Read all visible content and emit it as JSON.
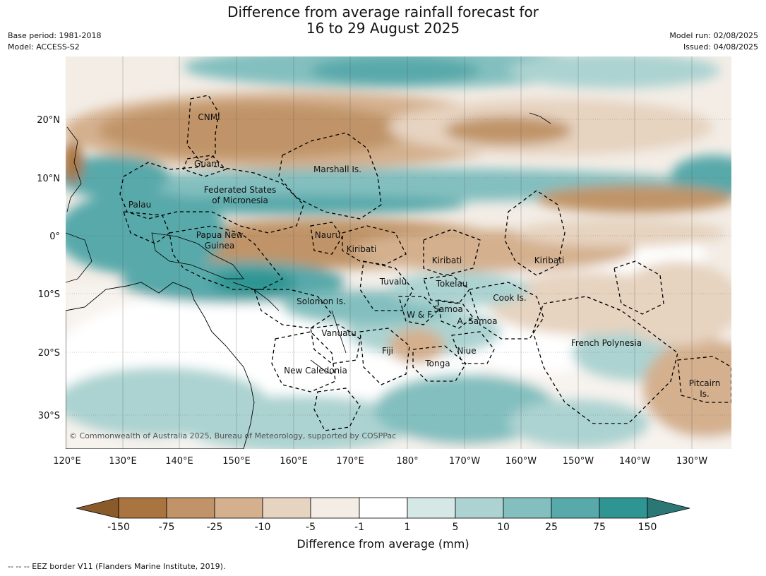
{
  "title_line1": "Difference from average rainfall forecast for",
  "title_line2": "16 to 29 August 2025",
  "meta_left": [
    "Base period: 1981-2018",
    "Model: ACCESS-S2"
  ],
  "meta_right": [
    "Model run: 02/08/2025",
    "Issued: 04/08/2025"
  ],
  "copyright": "© Commonwealth of Australia 2025, Bureau of Meteorology, supported by COSPPac",
  "lat_labels": [
    "20°N",
    "10°N",
    "0°",
    "10°S",
    "20°S",
    "30°S"
  ],
  "lon_labels": [
    "120°E",
    "130°E",
    "140°E",
    "150°E",
    "160°E",
    "170°E",
    "180°",
    "170°W",
    "160°W",
    "150°W",
    "140°W",
    "130°W"
  ],
  "region_labels": [
    "CNMI",
    "Guam",
    "Marshall Is.",
    "Federated States",
    "of Micronesia",
    "Palau",
    "Papua New",
    "Guinea",
    "Nauru",
    "Kiribati",
    "Kiribati",
    "Kiribati",
    "Tuvalu",
    "Tokelau",
    "Cook Is.",
    "Solomon Is.",
    "Samoa",
    "W & F",
    "A. Samoa",
    "Vanuatu",
    "Fiji",
    "Niue",
    "French Polynesia",
    "Tonga",
    "New Caledonia",
    "Pitcairn",
    "Is."
  ],
  "colorbar": {
    "ticks": [
      "-150",
      "-75",
      "-25",
      "-10",
      "-5",
      "-1",
      "1",
      "5",
      "10",
      "25",
      "75",
      "150"
    ],
    "colors": [
      "#8b5a2b",
      "#a9743f",
      "#c09468",
      "#d4b08e",
      "#e6d3c0",
      "#f3ede6",
      "#ffffff",
      "#d5e8e6",
      "#acd3d1",
      "#83bfbf",
      "#58a9aa",
      "#2f9593",
      "#2b7776"
    ],
    "label": "Difference from average (mm)"
  },
  "footnote": "--  --  -- EEZ border V11 (Flanders Marine Institute, 2019)."
}
